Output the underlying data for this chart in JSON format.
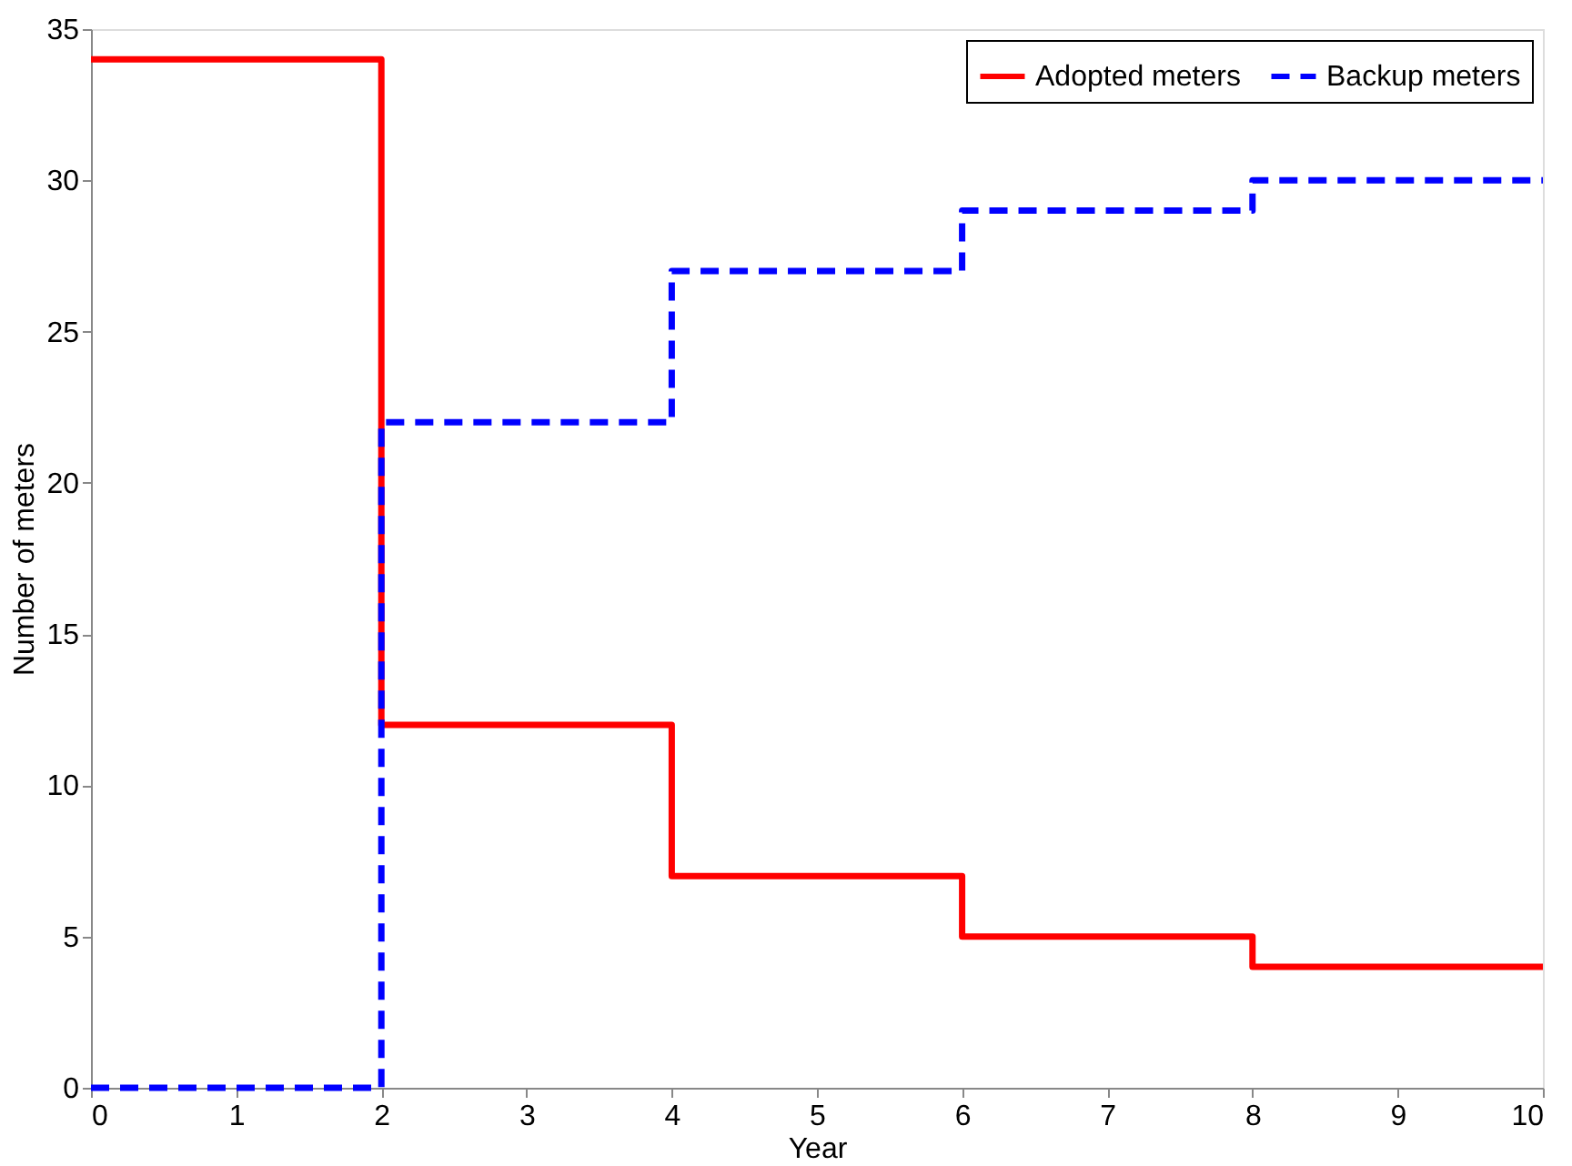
{
  "chart_data": {
    "type": "step",
    "xlabel": "Year",
    "ylabel": "Number of meters",
    "x": [
      0,
      2,
      4,
      6,
      8,
      10
    ],
    "series": [
      {
        "name": "Adopted meters",
        "color": "#ff0000",
        "line_style": "solid",
        "values": [
          34,
          12,
          7,
          5,
          4,
          4
        ]
      },
      {
        "name": "Backup meters",
        "color": "#0000ff",
        "line_style": "dashed",
        "values": [
          0,
          22,
          27,
          29,
          30,
          30
        ]
      }
    ],
    "xlim": [
      0,
      10
    ],
    "xticks": [
      0,
      1,
      2,
      3,
      4,
      5,
      6,
      7,
      8,
      9,
      10
    ],
    "ylim": [
      0,
      35
    ],
    "yticks": [
      0,
      5,
      10,
      15,
      20,
      25,
      30,
      35
    ],
    "grid": false,
    "legend": "top right",
    "marker": "none"
  }
}
